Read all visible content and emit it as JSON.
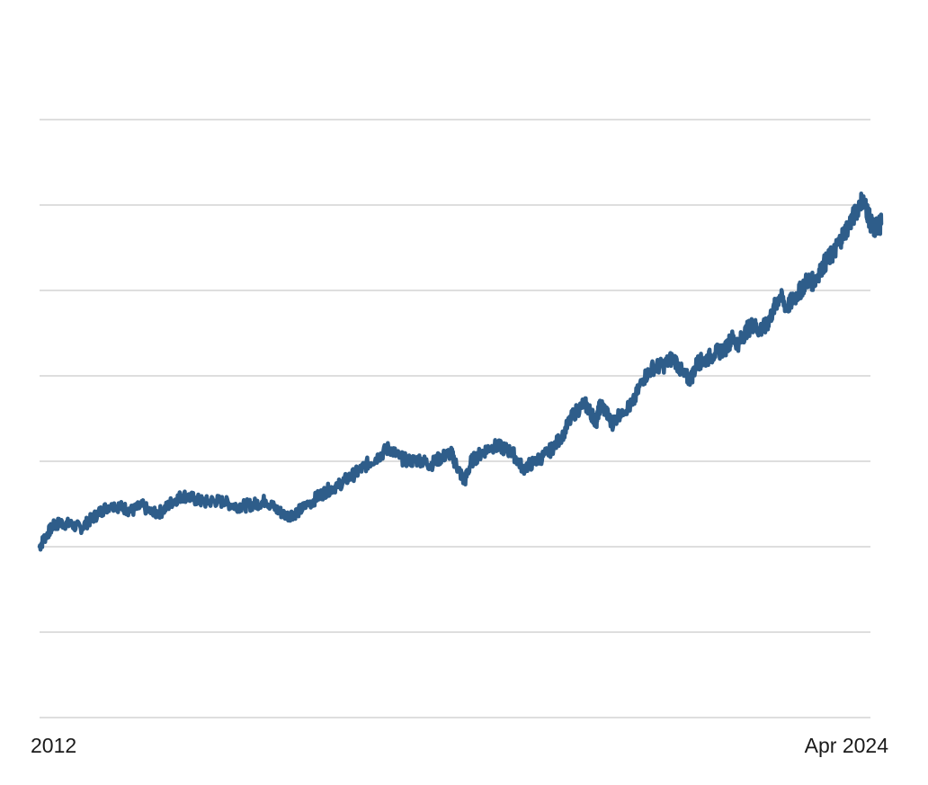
{
  "chart_data": {
    "type": "line",
    "title": "",
    "xlabel": "",
    "ylabel": "",
    "x_tick_labels": [
      "2012",
      "Apr 2024"
    ],
    "y_tick_labels": [],
    "grid": true,
    "grid_lines": 8,
    "legend": "none",
    "line_color": "#2e5d8a",
    "series": [
      {
        "x": [
          2012.0,
          2012.1,
          2012.2,
          2012.3,
          2012.45,
          2012.6,
          2012.75,
          2012.9,
          2013.05,
          2013.2,
          2013.35,
          2013.5,
          2013.65,
          2013.8,
          2013.95,
          2014.1,
          2014.25,
          2014.4,
          2014.55,
          2014.7,
          2014.85,
          2015.0,
          2015.15,
          2015.3,
          2015.45,
          2015.6,
          2015.75,
          2015.9,
          2016.05,
          2016.2,
          2016.35,
          2016.5,
          2016.65,
          2016.8,
          2016.95,
          2017.1,
          2017.25,
          2017.4,
          2017.55,
          2017.7,
          2017.85,
          2018.0,
          2018.1,
          2018.2,
          2018.3,
          2018.45,
          2018.6,
          2018.75,
          2018.9,
          2019.05,
          2019.2,
          2019.35,
          2019.5,
          2019.65,
          2019.8,
          2019.95,
          2020.05,
          2020.12,
          2020.18,
          2020.25,
          2020.35,
          2020.5,
          2020.65,
          2020.8,
          2020.95,
          2021.1,
          2021.25,
          2021.4,
          2021.5,
          2021.6,
          2021.7,
          2021.85,
          2022.0,
          2022.1,
          2022.2,
          2022.3,
          2022.4,
          2022.5,
          2022.6,
          2022.7,
          2022.8,
          2022.9,
          2023.0,
          2023.1,
          2023.2,
          2023.3,
          2023.4,
          2023.5,
          2023.6,
          2023.7,
          2023.8,
          2023.9,
          2024.0,
          2024.07,
          2024.12,
          2024.18,
          2024.23,
          2024.28
        ],
        "values": [
          1.0,
          1.07,
          1.12,
          1.14,
          1.13,
          1.11,
          1.16,
          1.21,
          1.25,
          1.23,
          1.21,
          1.24,
          1.19,
          1.21,
          1.27,
          1.3,
          1.28,
          1.26,
          1.27,
          1.26,
          1.24,
          1.24,
          1.25,
          1.27,
          1.22,
          1.18,
          1.2,
          1.24,
          1.29,
          1.33,
          1.36,
          1.4,
          1.44,
          1.49,
          1.53,
          1.58,
          1.52,
          1.5,
          1.51,
          1.48,
          1.52,
          1.55,
          1.46,
          1.38,
          1.5,
          1.55,
          1.59,
          1.58,
          1.55,
          1.46,
          1.49,
          1.53,
          1.58,
          1.67,
          1.78,
          1.84,
          1.78,
          1.73,
          1.83,
          1.8,
          1.72,
          1.8,
          1.83,
          1.98,
          2.05,
          2.06,
          2.11,
          2.0,
          1.98,
          2.08,
          2.09,
          2.13,
          2.16,
          2.22,
          2.19,
          2.26,
          2.3,
          2.27,
          2.29,
          2.38,
          2.47,
          2.4,
          2.45,
          2.5,
          2.56,
          2.55,
          2.63,
          2.68,
          2.73,
          2.81,
          2.88,
          2.95,
          3.04,
          2.97,
          2.9,
          2.86,
          2.88,
          2.89
        ]
      }
    ]
  }
}
